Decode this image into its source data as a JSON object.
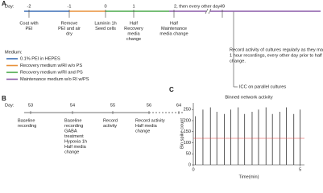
{
  "panel_a": {
    "label": "A",
    "day_label": "Day:",
    "ticks": [
      "-2",
      "-1",
      "0",
      "1",
      "2, then every other day",
      "49"
    ],
    "events": [
      [
        "Coat with",
        "PEI"
      ],
      [
        "Remove",
        "PEI and air",
        "dry"
      ],
      [
        "Laminin 1h",
        "Seed cells"
      ],
      [
        "Half",
        "Recovery",
        "media",
        "change"
      ],
      [
        "Half",
        "Maintenance",
        "media change"
      ]
    ],
    "note": [
      "Record activity of cultures regularly as they mature.",
      "1 hour recordings, every other day prior to half media",
      "change."
    ],
    "icc": "ICC on parallel cultures",
    "medium_title": "Medium:",
    "media": [
      {
        "name": "0.1% PEI in HEPES",
        "color": "#3c6fb6"
      },
      {
        "name": "Recovery medium w/RI w/o PS",
        "color": "#e8913a"
      },
      {
        "name": "Recovery medium w/RI and PS",
        "color": "#4aa84a"
      },
      {
        "name": "Maintenance medium w/o RI w/PS",
        "color": "#8a5aa8"
      }
    ]
  },
  "panel_b": {
    "label": "B",
    "day_label": "Day:",
    "ticks": [
      "53",
      "54",
      "55",
      "56",
      "64"
    ],
    "events": [
      [
        "Baseline",
        "recording"
      ],
      [
        "Baseline",
        "recording",
        "GABA",
        "treatment",
        "Hypoxia 1h",
        "Half media",
        "change"
      ],
      [
        "Record",
        "activity"
      ],
      [
        "Record activity",
        "Half media",
        "change"
      ]
    ]
  },
  "chart_data": {
    "type": "spike",
    "label": "C",
    "title": "Binned network activity",
    "x_label": "Time(min)",
    "y_label": "Bin spike count",
    "x": [
      0.1,
      0.45,
      0.8,
      1.1,
      1.45,
      1.75,
      2.1,
      2.4,
      2.75,
      3.05,
      3.4,
      3.7,
      4.05,
      4.35,
      4.7,
      5.0
    ],
    "values": [
      220,
      250,
      260,
      240,
      230,
      250,
      260,
      230,
      240,
      250,
      260,
      230,
      240,
      260,
      230,
      250
    ],
    "color": "#333333",
    "threshold": 120,
    "threshold_color": "#e04040",
    "xlim": [
      0,
      5.2
    ],
    "xticks": [
      0,
      5
    ],
    "ylim": [
      0,
      280
    ],
    "yticks": [
      0,
      50,
      100,
      150,
      200,
      250
    ]
  }
}
